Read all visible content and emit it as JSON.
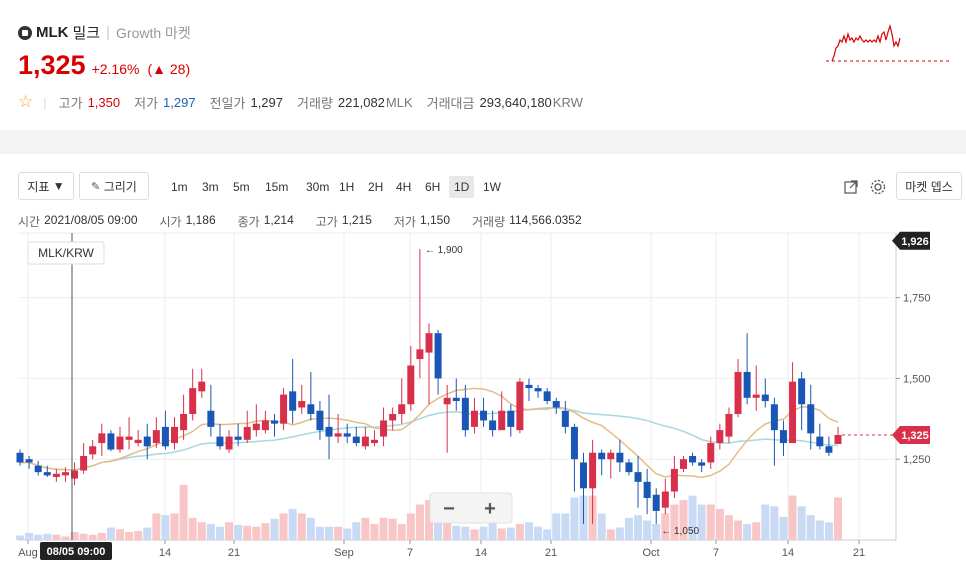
{
  "header": {
    "symbol": "MLK",
    "name": "밀크",
    "market": "Growth 마켓",
    "price": "1,325",
    "change_pct": "+2.16%",
    "change_abs": "28",
    "change_open": "(",
    "change_close": ")",
    "up_arrow": "▲",
    "stats": {
      "high_label": "고가",
      "high": "1,350",
      "low_label": "저가",
      "low": "1,297",
      "prev_label": "전일가",
      "prev": "1,297",
      "volume_label": "거래량",
      "volume": "221,082",
      "volume_unit": "MLK",
      "amount_label": "거래대금",
      "amount": "293,640,180",
      "amount_unit": "KRW"
    }
  },
  "toolbar": {
    "indicator_label": "지표",
    "draw_label": "그리기",
    "timeframes": [
      "1m",
      "3m",
      "5m",
      "15m",
      "30m",
      "1H",
      "2H",
      "4H",
      "6H",
      "1D",
      "1W"
    ],
    "active_timeframe": "1D",
    "depth_label": "마켓 뎁스"
  },
  "ohlc": {
    "time_label": "시간",
    "time": "2021/08/05 09:00",
    "open_label": "시가",
    "open": "1,186",
    "close_label": "종가",
    "close": "1,214",
    "high_label": "고가",
    "high": "1,215",
    "low_label": "저가",
    "low": "1,150",
    "volume_label": "거래량",
    "volume": "114,566.0352"
  },
  "chart_data": {
    "type": "candlestick",
    "pair_label": "MLK/KRW",
    "y_ticks": [
      "1,750",
      "1,500",
      "1,250"
    ],
    "x_ticks": [
      "Aug",
      "14",
      "21",
      "Sep",
      "7",
      "14",
      "21",
      "Oct",
      "7",
      "14",
      "21"
    ],
    "crosshair_date": "08/05 09:00",
    "max_label": "← 1,900",
    "min_label": "← 1,050",
    "top_tag": "1,926",
    "last_tag": "1,325",
    "ylim": [
      1000,
      1950
    ],
    "candles_ohlc": [
      [
        1270,
        1240,
        1280,
        1230
      ],
      [
        1250,
        1240,
        1260,
        1220
      ],
      [
        1230,
        1210,
        1245,
        1200
      ],
      [
        1210,
        1200,
        1230,
        1195
      ],
      [
        1195,
        1205,
        1220,
        1180
      ],
      [
        1200,
        1210,
        1225,
        1180
      ],
      [
        1190,
        1215,
        1240,
        1170
      ],
      [
        1215,
        1260,
        1300,
        1205
      ],
      [
        1265,
        1290,
        1310,
        1250
      ],
      [
        1300,
        1330,
        1360,
        1260
      ],
      [
        1330,
        1280,
        1340,
        1275
      ],
      [
        1280,
        1320,
        1350,
        1270
      ],
      [
        1310,
        1320,
        1380,
        1280
      ],
      [
        1300,
        1310,
        1340,
        1290
      ],
      [
        1320,
        1290,
        1360,
        1250
      ],
      [
        1300,
        1340,
        1380,
        1285
      ],
      [
        1350,
        1290,
        1400,
        1280
      ],
      [
        1300,
        1350,
        1380,
        1280
      ],
      [
        1340,
        1390,
        1450,
        1310
      ],
      [
        1390,
        1470,
        1530,
        1370
      ],
      [
        1460,
        1490,
        1530,
        1440
      ],
      [
        1400,
        1350,
        1480,
        1320
      ],
      [
        1320,
        1290,
        1360,
        1280
      ],
      [
        1280,
        1320,
        1340,
        1270
      ],
      [
        1320,
        1310,
        1360,
        1290
      ],
      [
        1310,
        1350,
        1400,
        1300
      ],
      [
        1340,
        1360,
        1420,
        1320
      ],
      [
        1340,
        1370,
        1400,
        1330
      ],
      [
        1370,
        1360,
        1390,
        1320
      ],
      [
        1360,
        1450,
        1470,
        1340
      ],
      [
        1460,
        1400,
        1560,
        1360
      ],
      [
        1410,
        1430,
        1480,
        1390
      ],
      [
        1420,
        1390,
        1520,
        1370
      ],
      [
        1400,
        1340,
        1430,
        1310
      ],
      [
        1350,
        1320,
        1450,
        1250
      ],
      [
        1320,
        1330,
        1390,
        1300
      ],
      [
        1330,
        1320,
        1360,
        1300
      ],
      [
        1320,
        1300,
        1350,
        1290
      ],
      [
        1290,
        1320,
        1350,
        1280
      ],
      [
        1300,
        1310,
        1340,
        1290
      ],
      [
        1320,
        1370,
        1410,
        1290
      ],
      [
        1370,
        1390,
        1410,
        1340
      ],
      [
        1390,
        1420,
        1500,
        1360
      ],
      [
        1420,
        1540,
        1600,
        1400
      ],
      [
        1560,
        1590,
        1900,
        1500
      ],
      [
        1580,
        1640,
        1670,
        1420
      ],
      [
        1640,
        1500,
        1650,
        1450
      ],
      [
        1420,
        1440,
        1480,
        1270
      ],
      [
        1440,
        1430,
        1500,
        1400
      ],
      [
        1440,
        1340,
        1480,
        1320
      ],
      [
        1350,
        1400,
        1440,
        1330
      ],
      [
        1400,
        1370,
        1440,
        1350
      ],
      [
        1370,
        1340,
        1400,
        1320
      ],
      [
        1340,
        1400,
        1460,
        1340
      ],
      [
        1400,
        1350,
        1420,
        1320
      ],
      [
        1340,
        1490,
        1500,
        1330
      ],
      [
        1480,
        1470,
        1500,
        1430
      ],
      [
        1470,
        1460,
        1480,
        1440
      ],
      [
        1460,
        1430,
        1470,
        1420
      ],
      [
        1430,
        1410,
        1440,
        1390
      ],
      [
        1400,
        1350,
        1430,
        1330
      ],
      [
        1350,
        1250,
        1360,
        1150
      ],
      [
        1240,
        1160,
        1270,
        1050
      ],
      [
        1160,
        1270,
        1310,
        1050
      ],
      [
        1270,
        1250,
        1280,
        1200
      ],
      [
        1250,
        1270,
        1280,
        1190
      ],
      [
        1270,
        1240,
        1310,
        1210
      ],
      [
        1240,
        1210,
        1250,
        1200
      ],
      [
        1210,
        1180,
        1260,
        1100
      ],
      [
        1180,
        1130,
        1220,
        1080
      ],
      [
        1140,
        1090,
        1160,
        1050
      ],
      [
        1100,
        1150,
        1190,
        1080
      ],
      [
        1150,
        1220,
        1260,
        1130
      ],
      [
        1220,
        1250,
        1260,
        1210
      ],
      [
        1260,
        1240,
        1270,
        1230
      ],
      [
        1240,
        1230,
        1250,
        1210
      ],
      [
        1240,
        1300,
        1320,
        1220
      ],
      [
        1300,
        1340,
        1360,
        1280
      ],
      [
        1320,
        1390,
        1410,
        1300
      ],
      [
        1390,
        1520,
        1560,
        1380
      ],
      [
        1520,
        1440,
        1640,
        1420
      ],
      [
        1440,
        1450,
        1540,
        1400
      ],
      [
        1450,
        1430,
        1500,
        1410
      ],
      [
        1420,
        1340,
        1440,
        1230
      ],
      [
        1340,
        1300,
        1370,
        1260
      ],
      [
        1300,
        1490,
        1550,
        1300
      ],
      [
        1500,
        1420,
        1520,
        1340
      ],
      [
        1420,
        1330,
        1480,
        1280
      ],
      [
        1320,
        1290,
        1360,
        1280
      ],
      [
        1290,
        1270,
        1320,
        1260
      ],
      [
        1297,
        1325,
        1350,
        1297
      ]
    ],
    "volumes": [
      5,
      8,
      6,
      7,
      6,
      4,
      9,
      7,
      6,
      8,
      14,
      12,
      9,
      10,
      14,
      30,
      28,
      30,
      62,
      25,
      20,
      18,
      15,
      20,
      17,
      16,
      15,
      19,
      24,
      30,
      35,
      30,
      25,
      15,
      15,
      15,
      13,
      20,
      25,
      18,
      25,
      24,
      18,
      30,
      40,
      45,
      30,
      20,
      16,
      15,
      12,
      15,
      20,
      13,
      14,
      18,
      20,
      15,
      12,
      30,
      30,
      48,
      50,
      50,
      30,
      12,
      14,
      25,
      28,
      22,
      18,
      30,
      40,
      45,
      50,
      40,
      40,
      35,
      28,
      22,
      18,
      20,
      40,
      38,
      26,
      50,
      38,
      28,
      22,
      20,
      48
    ]
  }
}
